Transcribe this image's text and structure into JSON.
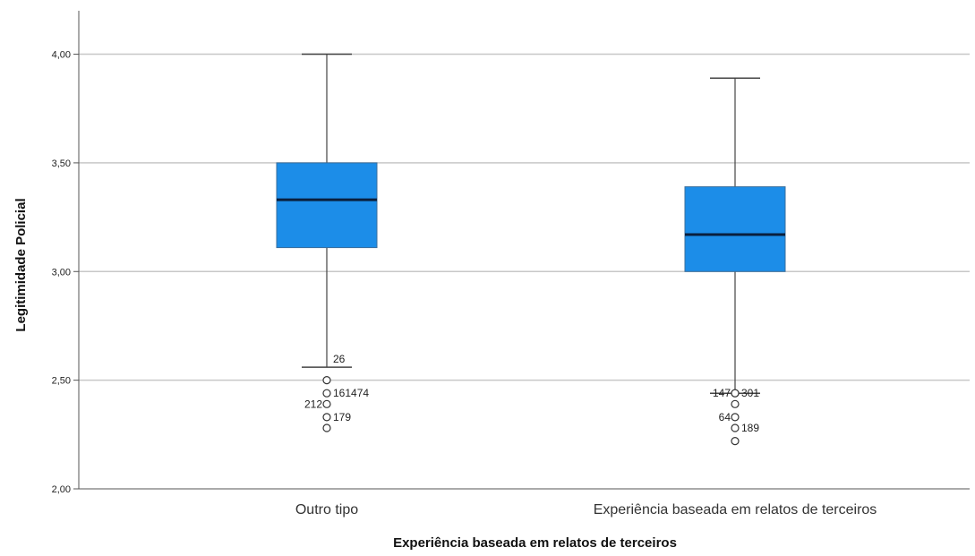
{
  "chart_data": {
    "type": "boxplot",
    "xlabel": "Experiência baseada em relatos de terceiros",
    "ylabel": "Legitimidade Policial",
    "ylim": [
      2.0,
      4.2
    ],
    "yticks": [
      2.0,
      2.5,
      3.0,
      3.5,
      4.0
    ],
    "ytick_labels": [
      "2,00",
      "2,50",
      "3,00",
      "3,50",
      "4,00"
    ],
    "grid": true,
    "box_color": "#1C8DE8",
    "median_color": "#0A1F3C",
    "categories": [
      "Outro tipo",
      "Experiência baseada em relatos de terceiros"
    ],
    "boxes": [
      {
        "category": "Outro tipo",
        "whisker_low": 2.56,
        "q1": 3.11,
        "median": 3.33,
        "q3": 3.5,
        "whisker_high": 4.0,
        "outliers": [
          {
            "value": 2.56,
            "label": "26"
          },
          {
            "value": 2.5,
            "label": ""
          },
          {
            "value": 2.44,
            "label": "161474"
          },
          {
            "value": 2.39,
            "label": "212"
          },
          {
            "value": 2.33,
            "label": "179"
          },
          {
            "value": 2.28,
            "label": ""
          }
        ]
      },
      {
        "category": "Experiência baseada em relatos de terceiros",
        "whisker_low": 2.44,
        "q1": 3.0,
        "median": 3.17,
        "q3": 3.39,
        "whisker_high": 3.89,
        "outliers": [
          {
            "value": 2.44,
            "label": "147"
          },
          {
            "value": 2.44,
            "label": "301"
          },
          {
            "value": 2.39,
            "label": ""
          },
          {
            "value": 2.33,
            "label": "64"
          },
          {
            "value": 2.28,
            "label": "189"
          },
          {
            "value": 2.22,
            "label": ""
          }
        ]
      }
    ]
  }
}
